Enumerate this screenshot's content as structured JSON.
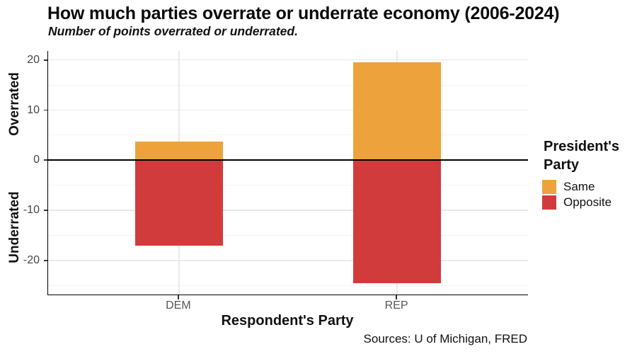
{
  "chart_data": {
    "type": "bar",
    "variant": "diverging-stacked",
    "title": "How much parties overrate or underrate economy (2006-2024)",
    "subtitle": "Number of points overrated or underrated.",
    "caption": "Sources: U of Michigan, FRED",
    "xlabel": "Respondent's Party",
    "ylabel_positive": "Overrated",
    "ylabel_negative": "Underrated",
    "categories": [
      "DEM",
      "REP"
    ],
    "series": [
      {
        "name": "Same",
        "color": "#EDA23B",
        "values": [
          3.7,
          19.5
        ]
      },
      {
        "name": "Opposite",
        "color": "#D23B3B",
        "values": [
          -17,
          -24.5
        ]
      }
    ],
    "legend": {
      "title": "President's Party",
      "position": "right"
    },
    "ylim": [
      -26.8,
      21.8
    ],
    "yticks": [
      20,
      10,
      0,
      -10,
      -20
    ],
    "yticks_minor": [
      15,
      5,
      -5,
      -15,
      -25
    ],
    "grid": "horizontal-major-minor",
    "colors": {
      "grid_major": "#E9E9E9",
      "grid_minor": "#F3F3F3",
      "vertical_grid": "#E9E9E9",
      "axis_line": "#000000",
      "zero_line": "#000000",
      "tick_label": "#454545",
      "category_label": "#555555",
      "background": "#FFFFFF"
    }
  }
}
